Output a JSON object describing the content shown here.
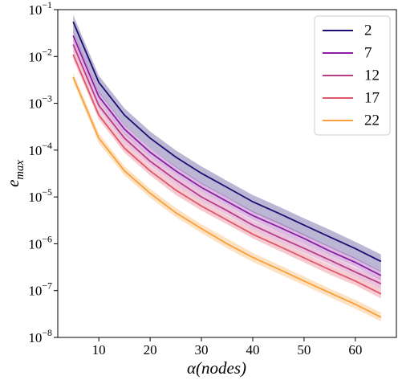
{
  "chart_data": {
    "type": "line",
    "x_label": "α(nodes)",
    "y_label": "e_max",
    "x": [
      5,
      10,
      15,
      20,
      25,
      30,
      35,
      40,
      45,
      50,
      55,
      60,
      65
    ],
    "xlim": [
      2,
      68
    ],
    "xticks": [
      10,
      20,
      30,
      40,
      50,
      60
    ],
    "ylim": [
      1e-08,
      0.1
    ],
    "y_scale": "log",
    "yticks": [
      {
        "value": 1e-08,
        "label": "10^-8"
      },
      {
        "value": 1e-07,
        "label": "10^-7"
      },
      {
        "value": 1e-06,
        "label": "10^-6"
      },
      {
        "value": 1e-05,
        "label": "10^-5"
      },
      {
        "value": 0.0001,
        "label": "10^-4"
      },
      {
        "value": 0.001,
        "label": "10^-3"
      },
      {
        "value": 0.01,
        "label": "10^-2"
      },
      {
        "value": 0.1,
        "label": "10^-1"
      }
    ],
    "legend": "upper right",
    "series": [
      {
        "name": "2",
        "color": "#1f0c72",
        "values": [
          0.055,
          0.0028,
          0.00056,
          0.00018,
          7.1e-05,
          3.2e-05,
          1.6e-05,
          7.9e-06,
          4.5e-06,
          2.5e-06,
          1.4e-06,
          7.9e-07,
          4.2e-07
        ],
        "lower": [
          0.033,
          0.0017,
          0.00034,
          0.00011,
          4.3e-05,
          1.9e-05,
          9.6e-06,
          4.7e-06,
          2.7e-06,
          1.5e-06,
          8.4e-07,
          4.7e-07,
          2.5e-07
        ],
        "upper": [
          0.077,
          0.0039,
          0.00078,
          0.00025,
          9.9e-05,
          4.5e-05,
          2.2e-05,
          1.1e-05,
          6.3e-06,
          3.5e-06,
          2e-06,
          1.1e-06,
          5.9e-07
        ]
      },
      {
        "name": "7",
        "color": "#8b1ea3",
        "values": [
          0.028,
          0.0014,
          0.00028,
          9e-05,
          3.6e-05,
          1.6e-05,
          8e-06,
          4e-06,
          2.3e-06,
          1.3e-06,
          7e-07,
          4e-07,
          2.1e-07
        ],
        "lower": [
          0.022,
          0.0011,
          0.00022,
          7.2e-05,
          2.9e-05,
          1.3e-05,
          6.4e-06,
          3.2e-06,
          1.8e-06,
          1e-06,
          5.6e-07,
          3.2e-07,
          1.7e-07
        ],
        "upper": [
          0.035,
          0.0018,
          0.00035,
          0.00011,
          4.5e-05,
          2e-05,
          1e-05,
          5e-06,
          2.9e-06,
          1.6e-06,
          8.8e-07,
          5e-07,
          2.6e-07
        ]
      },
      {
        "name": "12",
        "color": "#b83c8a",
        "values": [
          0.018,
          0.0009,
          0.00018,
          5.8e-05,
          2.3e-05,
          1e-05,
          5.1e-06,
          2.5e-06,
          1.4e-06,
          8e-07,
          4.5e-07,
          2.5e-07,
          1.4e-07
        ],
        "lower": [
          0.014,
          0.00072,
          0.00014,
          4.6e-05,
          1.8e-05,
          8e-06,
          4.1e-06,
          2e-06,
          1.1e-06,
          6.4e-07,
          3.6e-07,
          2e-07,
          1.1e-07
        ],
        "upper": [
          0.023,
          0.0011,
          0.00023,
          7.3e-05,
          2.9e-05,
          1.3e-05,
          6.4e-06,
          3.1e-06,
          1.8e-06,
          1e-06,
          5.6e-07,
          3.1e-07,
          1.8e-07
        ]
      },
      {
        "name": "17",
        "color": "#e0566a",
        "values": [
          0.011,
          0.00056,
          0.00011,
          3.6e-05,
          1.4e-05,
          6.4e-06,
          3.2e-06,
          1.6e-06,
          9e-07,
          5e-07,
          2.8e-07,
          1.6e-07,
          8.5e-08
        ],
        "lower": [
          0.0088,
          0.00045,
          8.8e-05,
          2.9e-05,
          1.1e-05,
          5.1e-06,
          2.6e-06,
          1.3e-06,
          7.2e-07,
          4e-07,
          2.2e-07,
          1.3e-07,
          6.8e-08
        ],
        "upper": [
          0.014,
          0.0007,
          0.00014,
          4.5e-05,
          1.8e-05,
          8e-06,
          4e-06,
          2e-06,
          1.1e-06,
          6.3e-07,
          3.5e-07,
          2e-07,
          1.1e-07
        ]
      },
      {
        "name": "22",
        "color": "#f9a03c",
        "values": [
          0.0036,
          0.00018,
          3.6e-05,
          1.2e-05,
          4.6e-06,
          2.1e-06,
          1e-06,
          5.1e-07,
          2.9e-07,
          1.6e-07,
          9e-08,
          5.1e-08,
          2.7e-08
        ],
        "lower": [
          0.0029,
          0.00014,
          2.9e-05,
          9.6e-06,
          3.7e-06,
          1.7e-06,
          8e-07,
          4.1e-07,
          2.3e-07,
          1.3e-07,
          7.2e-08,
          4.1e-08,
          2.2e-08
        ],
        "upper": [
          0.0045,
          0.00023,
          4.5e-05,
          1.5e-05,
          5.8e-06,
          2.6e-06,
          1.3e-06,
          6.4e-07,
          3.6e-07,
          2e-07,
          1.1e-07,
          6.4e-08,
          3.4e-08
        ]
      }
    ]
  }
}
